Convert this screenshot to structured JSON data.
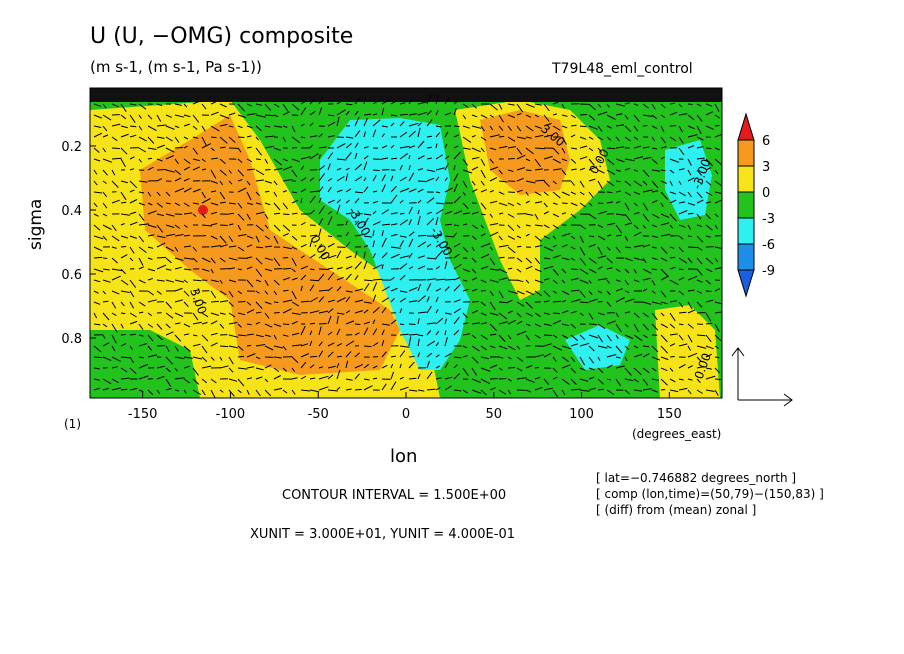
{
  "header": {
    "title": "U (U, −OMG) composite",
    "subtitle": "(m s-1, (m s-1, Pa s-1))",
    "run_name": "T79L48_eml_control"
  },
  "footer": {
    "contour_interval": "CONTOUR INTERVAL = 1.500E+00",
    "unit_line": "XUNIT = 3.000E+01, YUNIT = 4.000E-01",
    "info_lat": "[ lat=−0.746882 degrees_north ]",
    "info_comp": "[ comp (lon,time)=(50,79)−(150,83) ]",
    "info_diff": "[ (diff) from (mean) zonal ]",
    "frame_number": "(1)"
  },
  "chart_data": {
    "type": "contour",
    "x_axis": {
      "label": "lon",
      "units": "(degrees_east)",
      "range": [
        -180,
        180
      ],
      "ticks": [
        -150,
        -100,
        -50,
        0,
        50,
        100,
        150
      ]
    },
    "y_axis": {
      "label": "sigma",
      "range": [
        1.0,
        0.0
      ],
      "ticks": [
        0.2,
        0.4,
        0.6,
        0.8
      ]
    },
    "colorbar": {
      "levels": [
        6,
        3,
        0,
        -3,
        -6,
        -9
      ],
      "colors": [
        "#e41a1c",
        "#f59a1e",
        "#f7e418",
        "#22c31c",
        "#2ef0f0",
        "#1e8fe8",
        "#1a5fe0"
      ]
    },
    "contour_labels": [
      "0.00",
      "3.00",
      "-3.00"
    ],
    "vector_reference": {
      "xunit": 30.0,
      "yunit": 0.4
    },
    "regions": [
      {
        "value_range": "3 to 6",
        "desc": "west"
      },
      {
        "value_range": "-3 to -6",
        "desc": "central"
      },
      {
        "value_range": "3 to 6",
        "desc": "east"
      }
    ]
  }
}
